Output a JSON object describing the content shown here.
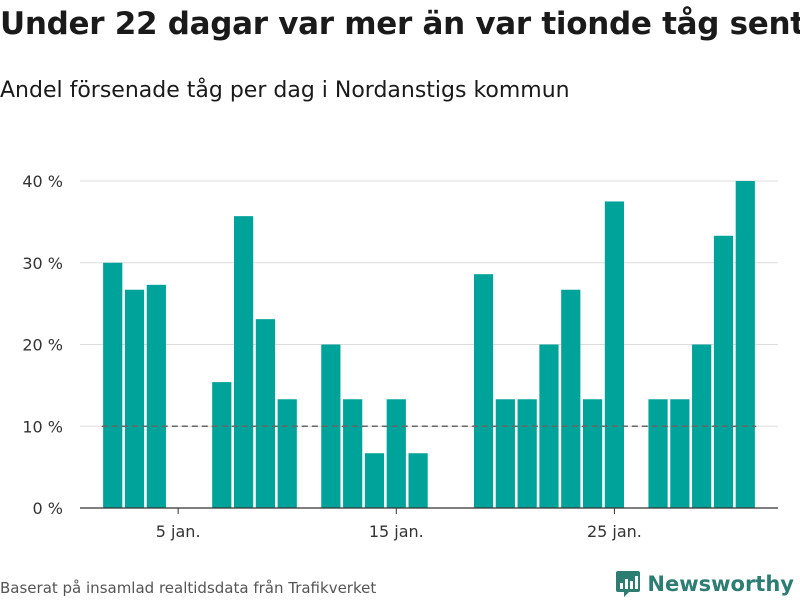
{
  "header": {
    "title": "Under 22 dagar var mer än var tionde tåg sent",
    "subtitle": "Andel försenade tåg per dag i Nordanstigs kommun"
  },
  "footer": {
    "source": "Baserat på insamlad realtidsdata från Trafikverket",
    "brand": "Newsworthy"
  },
  "colors": {
    "bar": "#00a39a",
    "grid": "#dddddd",
    "reference_line": "#666666",
    "axis": "#333333",
    "brand": "#2e7d73"
  },
  "icons": {
    "brand_logo": "bar-chart-pin-icon"
  },
  "chart_data": {
    "type": "bar",
    "title": "Under 22 dagar var mer än var tionde tåg sent",
    "subtitle": "Andel försenade tåg per dag i Nordanstigs kommun",
    "xlabel": "",
    "ylabel": "",
    "x": [
      1,
      2,
      3,
      4,
      5,
      6,
      7,
      8,
      9,
      10,
      11,
      12,
      13,
      14,
      15,
      16,
      17,
      18,
      19,
      20,
      21,
      22,
      23,
      24,
      25,
      26,
      27,
      28,
      29,
      30,
      31,
      32
    ],
    "values": [
      null,
      30,
      26.7,
      27.3,
      null,
      null,
      15.4,
      35.7,
      23.1,
      13.3,
      null,
      20,
      13.3,
      6.7,
      13.3,
      6.7,
      null,
      null,
      28.6,
      13.3,
      13.3,
      20,
      26.7,
      13.3,
      37.5,
      null,
      13.3,
      13.3,
      20,
      33.3,
      40,
      null
    ],
    "x_ticks": [
      {
        "value": 5,
        "label": "5 jan."
      },
      {
        "value": 15,
        "label": "15 jan."
      },
      {
        "value": 25,
        "label": "25 jan."
      }
    ],
    "y_ticks": [
      {
        "value": 0,
        "label": "0 %"
      },
      {
        "value": 10,
        "label": "10 %"
      },
      {
        "value": 20,
        "label": "20 %"
      },
      {
        "value": 30,
        "label": "30 %"
      },
      {
        "value": 40,
        "label": "40 %"
      }
    ],
    "ylim": [
      0,
      40
    ],
    "xlim": [
      0.5,
      32.5
    ],
    "reference_line": {
      "value": 10,
      "style": "dashed",
      "from_x": 1.5,
      "to_x": 31.5
    },
    "grid": true,
    "legend": "none"
  }
}
